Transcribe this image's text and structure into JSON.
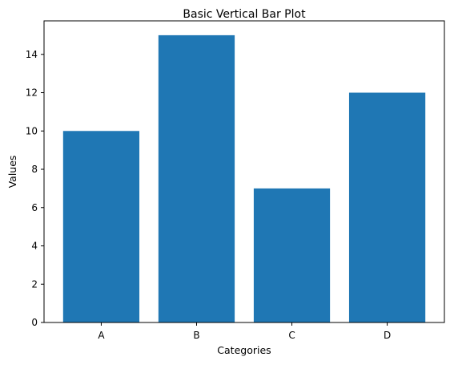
{
  "chart_data": {
    "type": "bar",
    "title": "Basic Vertical Bar Plot",
    "xlabel": "Categories",
    "ylabel": "Values",
    "categories": [
      "A",
      "B",
      "C",
      "D"
    ],
    "values": [
      10,
      15,
      7,
      12
    ],
    "ylim": [
      0,
      15.75
    ],
    "yticks": [
      0,
      2,
      4,
      6,
      8,
      10,
      12,
      14
    ],
    "bar_color": "#1f77b4",
    "grid": false
  }
}
